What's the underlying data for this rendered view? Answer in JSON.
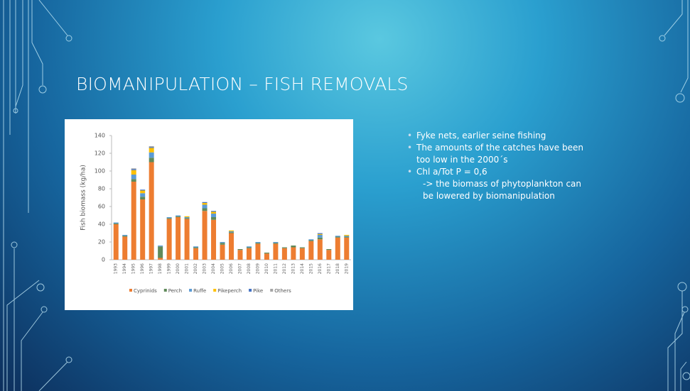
{
  "slide": {
    "title": "BIOMANIPULATION – FISH REMOVALS",
    "bullets": [
      "Fyke nets, earlier seine fishing",
      "The amounts of the catches have been too low in the 2000´s",
      "Chl a/Tot P = 0,6"
    ],
    "note": "-> the biomass of phytoplankton can be lowered by biomanipulation"
  },
  "chart_data": {
    "type": "stacked_bar",
    "y_label": "Fish biomass (kg/ha)",
    "categories": [
      "1993",
      "1994",
      "1995",
      "1996",
      "1997",
      "1998",
      "1999",
      "2000",
      "2001",
      "2002",
      "2003",
      "2004",
      "2005",
      "2006",
      "2007",
      "2008",
      "2009",
      "2010",
      "2011",
      "2012",
      "2013",
      "2014",
      "2015",
      "2016",
      "2017",
      "2018",
      "2019"
    ],
    "series": [
      {
        "name": "Cyprinids",
        "color": "#ed7d31",
        "values": [
          40,
          26,
          88,
          68,
          110,
          2,
          46,
          48,
          46,
          13,
          55,
          45,
          17,
          30,
          11,
          13,
          18,
          7,
          18,
          13,
          14,
          13,
          21,
          23,
          11,
          25,
          25
        ]
      },
      {
        "name": "Perch",
        "color": "#5f8a5a",
        "values": [
          1,
          1,
          3,
          3,
          5,
          13,
          1,
          1,
          1,
          1,
          3,
          3,
          2,
          1,
          1,
          1,
          1,
          1,
          1,
          1,
          2,
          1,
          1,
          2,
          1,
          1,
          1
        ]
      },
      {
        "name": "Ruffe",
        "color": "#5b9bd5",
        "values": [
          1,
          1,
          5,
          4,
          6,
          1,
          1,
          1,
          1,
          1,
          4,
          4,
          1,
          1,
          0,
          1,
          1,
          0,
          1,
          0,
          0,
          0,
          1,
          3,
          0,
          1,
          1
        ]
      },
      {
        "name": "Pikeperch",
        "color": "#ffc000",
        "values": [
          0,
          0,
          5,
          3,
          5,
          0,
          0,
          0,
          1,
          0,
          2,
          2,
          0,
          1,
          0,
          0,
          0,
          0,
          0,
          0,
          0,
          0,
          0,
          1,
          0,
          0,
          1
        ]
      },
      {
        "name": "Pike",
        "color": "#4472c4",
        "values": [
          0,
          0,
          1,
          1,
          1,
          0,
          0,
          0,
          0,
          0,
          1,
          1,
          0,
          0,
          0,
          0,
          0,
          0,
          0,
          0,
          0,
          0,
          0,
          1,
          0,
          0,
          0
        ]
      },
      {
        "name": "Others",
        "color": "#a5a5a5",
        "values": [
          0,
          0,
          1,
          0,
          1,
          0,
          0,
          0,
          0,
          0,
          0,
          0,
          0,
          0,
          0,
          0,
          0,
          0,
          0,
          0,
          0,
          0,
          0,
          0,
          0,
          0,
          0
        ]
      }
    ],
    "ylim": [
      0,
      140
    ],
    "yticks": [
      0,
      20,
      40,
      60,
      80,
      100,
      120,
      140
    ],
    "grid": false
  }
}
